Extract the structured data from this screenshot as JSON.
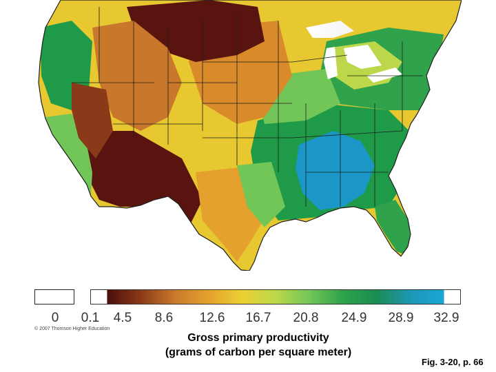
{
  "map": {
    "subject": "Contiguous United States",
    "colors": {
      "very_low": "#5a1410",
      "low": "#d98a2b",
      "mid_low": "#e8c830",
      "mid": "#7ccf4a",
      "mid_high": "#1f9a48",
      "high": "#1a97c6",
      "water": "#ffffff",
      "state_lines": "#1d1d1d"
    }
  },
  "legend": {
    "zero_label": "0",
    "ticks": [
      "0.1",
      "4.5",
      "8.6",
      "12.6",
      "16.7",
      "20.8",
      "24.9",
      "28.9",
      "32.9"
    ],
    "gradient_colors": [
      "#4a0e0e",
      "#8a3a18",
      "#c9782b",
      "#e4a12d",
      "#ecd033",
      "#bcd84a",
      "#72c657",
      "#2fa24b",
      "#1b8c52",
      "#1c97b6",
      "#1aa7d6"
    ]
  },
  "copyright": "© 2007 Thomson Higher Education",
  "caption": {
    "line1": "Gross primary productivity",
    "line2": "(grams of carbon per square meter)"
  },
  "figure_label": "Fig. 3-20, p. 66"
}
